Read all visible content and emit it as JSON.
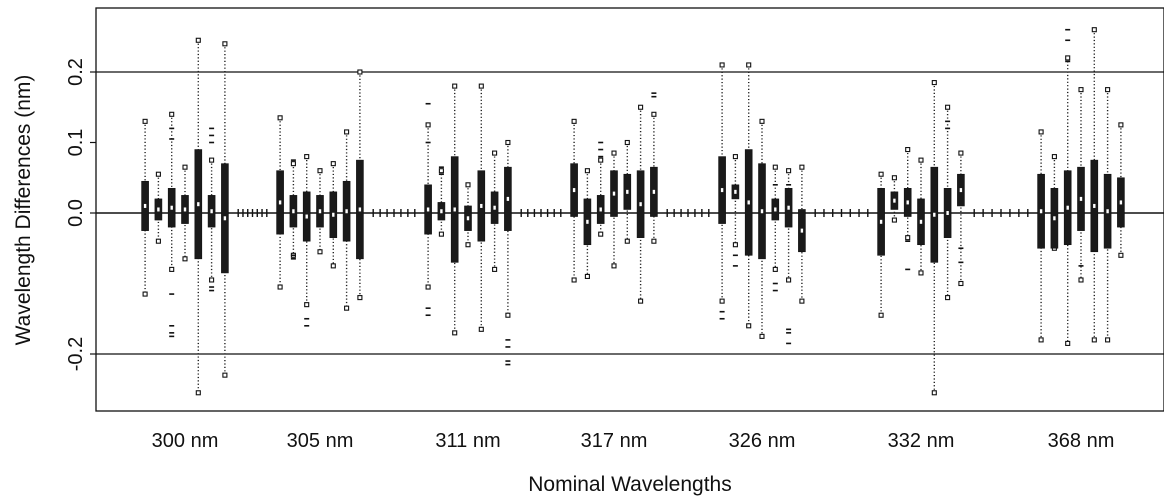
{
  "chart_data": {
    "type": "boxplot",
    "title": "",
    "xlabel": "Nominal Wavelengths",
    "ylabel": "Wavelength Differences (nm)",
    "ylim": [
      -0.28,
      0.29
    ],
    "y_ticks": [
      -0.2,
      0.0,
      0.1,
      0.2
    ],
    "y_tick_labels": [
      "-0.2",
      "0.0",
      "0.1",
      "0.2"
    ],
    "reference_lines": [
      0.2,
      0.0,
      -0.2
    ],
    "grid": false,
    "categories": [
      "300 nm",
      "305 nm",
      "311 nm",
      "317 nm",
      "326 nm",
      "332 nm",
      "368 nm"
    ],
    "groups": [
      {
        "category": "300 nm",
        "boxes": [
          {
            "q1": -0.025,
            "q3": 0.045,
            "wlo": -0.115,
            "whi": 0.13
          },
          {
            "q1": -0.01,
            "q3": 0.02,
            "wlo": -0.04,
            "whi": 0.055
          },
          {
            "q1": -0.02,
            "q3": 0.035,
            "wlo": -0.08,
            "whi": 0.14,
            "out": [
              0.105,
              0.12,
              -0.115,
              -0.16,
              -0.17,
              -0.175
            ]
          },
          {
            "q1": -0.015,
            "q3": 0.025,
            "wlo": -0.065,
            "whi": 0.065
          },
          {
            "q1": -0.065,
            "q3": 0.09,
            "wlo": -0.255,
            "whi": 0.245
          },
          {
            "q1": -0.02,
            "q3": 0.025,
            "wlo": -0.095,
            "whi": 0.075,
            "out": [
              0.1,
              0.11,
              0.12,
              -0.105,
              -0.11
            ]
          },
          {
            "q1": -0.085,
            "q3": 0.07,
            "wlo": -0.23,
            "whi": 0.24
          }
        ]
      },
      {
        "category": "305 nm",
        "boxes": [
          {
            "q1": -0.03,
            "q3": 0.06,
            "wlo": -0.105,
            "whi": 0.135
          },
          {
            "q1": -0.02,
            "q3": 0.025,
            "wlo": -0.06,
            "whi": 0.07,
            "out": [
              0.075,
              -0.06,
              -0.065
            ]
          },
          {
            "q1": -0.04,
            "q3": 0.03,
            "wlo": -0.13,
            "whi": 0.08,
            "out": [
              -0.15,
              -0.16
            ]
          },
          {
            "q1": -0.02,
            "q3": 0.025,
            "wlo": -0.055,
            "whi": 0.06
          },
          {
            "q1": -0.035,
            "q3": 0.03,
            "wlo": -0.075,
            "whi": 0.07
          },
          {
            "q1": -0.04,
            "q3": 0.045,
            "wlo": -0.135,
            "whi": 0.115
          },
          {
            "q1": -0.065,
            "q3": 0.075,
            "wlo": -0.12,
            "whi": 0.2
          }
        ]
      },
      {
        "category": "311 nm",
        "boxes": [
          {
            "q1": -0.03,
            "q3": 0.04,
            "wlo": -0.105,
            "whi": 0.125,
            "out": [
              0.1,
              0.155,
              -0.135,
              -0.145
            ]
          },
          {
            "q1": -0.01,
            "q3": 0.015,
            "wlo": -0.03,
            "whi": 0.06,
            "out": [
              0.065,
              0.055
            ]
          },
          {
            "q1": -0.07,
            "q3": 0.08,
            "wlo": -0.17,
            "whi": 0.18
          },
          {
            "q1": -0.025,
            "q3": 0.01,
            "wlo": -0.045,
            "whi": 0.04
          },
          {
            "q1": -0.04,
            "q3": 0.06,
            "wlo": -0.165,
            "whi": 0.18
          },
          {
            "q1": -0.015,
            "q3": 0.03,
            "wlo": -0.08,
            "whi": 0.085
          },
          {
            "q1": -0.025,
            "q3": 0.065,
            "wlo": -0.145,
            "whi": 0.1,
            "out": [
              -0.18,
              -0.19,
              -0.21,
              -0.215
            ]
          }
        ]
      },
      {
        "category": "317 nm",
        "boxes": [
          {
            "q1": -0.005,
            "q3": 0.07,
            "wlo": -0.095,
            "whi": 0.13
          },
          {
            "q1": -0.045,
            "q3": 0.02,
            "wlo": -0.09,
            "whi": 0.06
          },
          {
            "q1": -0.015,
            "q3": 0.025,
            "wlo": -0.03,
            "whi": 0.075,
            "out": [
              0.1,
              0.09,
              0.08
            ]
          },
          {
            "q1": -0.005,
            "q3": 0.06,
            "wlo": -0.075,
            "whi": 0.085
          },
          {
            "q1": 0.005,
            "q3": 0.055,
            "wlo": -0.04,
            "whi": 0.1
          },
          {
            "q1": -0.035,
            "q3": 0.06,
            "wlo": -0.125,
            "whi": 0.15
          },
          {
            "q1": -0.005,
            "q3": 0.065,
            "wlo": -0.04,
            "whi": 0.14,
            "out": [
              0.17,
              0.165
            ]
          }
        ]
      },
      {
        "category": "326 nm",
        "boxes": [
          {
            "q1": -0.015,
            "q3": 0.08,
            "wlo": -0.125,
            "whi": 0.21,
            "out": [
              -0.14,
              -0.15
            ]
          },
          {
            "q1": 0.02,
            "q3": 0.04,
            "wlo": -0.045,
            "whi": 0.08,
            "out": [
              -0.06,
              -0.075
            ]
          },
          {
            "q1": -0.06,
            "q3": 0.09,
            "wlo": -0.16,
            "whi": 0.21
          },
          {
            "q1": -0.065,
            "q3": 0.07,
            "wlo": -0.175,
            "whi": 0.13
          },
          {
            "q1": -0.01,
            "q3": 0.02,
            "wlo": -0.08,
            "whi": 0.065,
            "out": [
              0.04,
              -0.1,
              -0.11
            ]
          },
          {
            "q1": -0.02,
            "q3": 0.035,
            "wlo": -0.095,
            "whi": 0.06,
            "out": [
              0.04,
              -0.165,
              -0.17,
              -0.185
            ]
          },
          {
            "q1": -0.055,
            "q3": 0.005,
            "wlo": -0.125,
            "whi": 0.065
          }
        ]
      },
      {
        "category": "332 nm",
        "boxes": [
          {
            "q1": -0.06,
            "q3": 0.035,
            "wlo": -0.145,
            "whi": 0.055
          },
          {
            "q1": 0.005,
            "q3": 0.03,
            "wlo": -0.01,
            "whi": 0.05
          },
          {
            "q1": -0.005,
            "q3": 0.035,
            "wlo": -0.035,
            "whi": 0.09,
            "out": [
              -0.04,
              -0.08
            ]
          },
          {
            "q1": -0.045,
            "q3": 0.02,
            "wlo": -0.085,
            "whi": 0.075
          },
          {
            "q1": -0.07,
            "q3": 0.065,
            "wlo": -0.255,
            "whi": 0.185
          },
          {
            "q1": -0.035,
            "q3": 0.035,
            "wlo": -0.12,
            "whi": 0.15,
            "out": [
              0.12,
              0.13
            ]
          },
          {
            "q1": 0.01,
            "q3": 0.055,
            "wlo": -0.1,
            "whi": 0.085,
            "out": [
              -0.05,
              -0.07
            ]
          }
        ]
      },
      {
        "category": "368 nm",
        "boxes": [
          {
            "q1": -0.05,
            "q3": 0.055,
            "wlo": -0.18,
            "whi": 0.115
          },
          {
            "q1": -0.05,
            "q3": 0.035,
            "wlo": -0.05,
            "whi": 0.08
          },
          {
            "q1": -0.045,
            "q3": 0.06,
            "wlo": -0.185,
            "whi": 0.22,
            "out": [
              0.26,
              0.245,
              0.215
            ]
          },
          {
            "q1": -0.025,
            "q3": 0.065,
            "wlo": -0.095,
            "whi": 0.175,
            "out": [
              -0.075
            ]
          },
          {
            "q1": -0.055,
            "q3": 0.075,
            "wlo": -0.18,
            "whi": 0.26
          },
          {
            "q1": -0.05,
            "q3": 0.055,
            "wlo": -0.18,
            "whi": 0.175
          },
          {
            "q1": -0.02,
            "q3": 0.05,
            "wlo": -0.06,
            "whi": 0.125
          }
        ]
      }
    ],
    "between_groups_count": 7
  }
}
